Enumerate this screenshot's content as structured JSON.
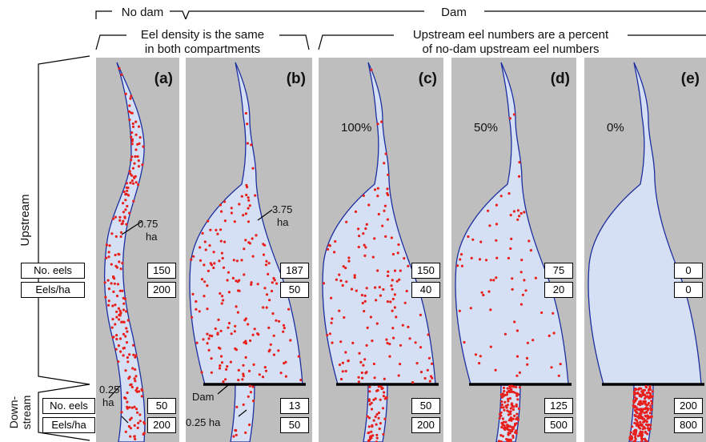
{
  "header": {
    "no_dam": "No dam",
    "dam": "Dam",
    "same_density_line1": "Eel density is the same",
    "same_density_line2": "in both compartments",
    "percent_line1": "Upstream eel numbers are a percent",
    "percent_line2": "of no-dam upstream eel numbers"
  },
  "side": {
    "upstream": "Upstream",
    "downstream_line1": "Down-",
    "downstream_line2": "stream",
    "row_no_eels": "No. eels",
    "row_eels_ha": "Eels/ha"
  },
  "panels": [
    {
      "letter": "(a)",
      "percent": "",
      "up_eels": "150",
      "up_density": "200",
      "down_eels": "50",
      "down_density": "200"
    },
    {
      "letter": "(b)",
      "percent": "",
      "up_eels": "187",
      "up_density": "50",
      "down_eels": "13",
      "down_density": "50"
    },
    {
      "letter": "(c)",
      "percent": "100%",
      "up_eels": "150",
      "up_density": "40",
      "down_eels": "50",
      "down_density": "200"
    },
    {
      "letter": "(d)",
      "percent": "50%",
      "up_eels": "75",
      "up_density": "20",
      "down_eels": "125",
      "down_density": "500"
    },
    {
      "letter": "(e)",
      "percent": "0%",
      "up_eels": "0",
      "up_density": "0",
      "down_eels": "200",
      "down_density": "800"
    }
  ],
  "annotations": {
    "area_a_up_1": "0.75",
    "area_a_up_2": "ha",
    "area_a_down_1": "0.25",
    "area_a_down_2": "ha",
    "area_b_up_1": "3.75",
    "area_b_up_2": "ha",
    "area_b_down": "0.25 ha",
    "dam": "Dam"
  },
  "colors": {
    "panel_bg": "#bebebe",
    "water": "#d6e0f5",
    "outline": "#1c2ea0",
    "eel": "#e8201c",
    "dam": "#000000"
  }
}
